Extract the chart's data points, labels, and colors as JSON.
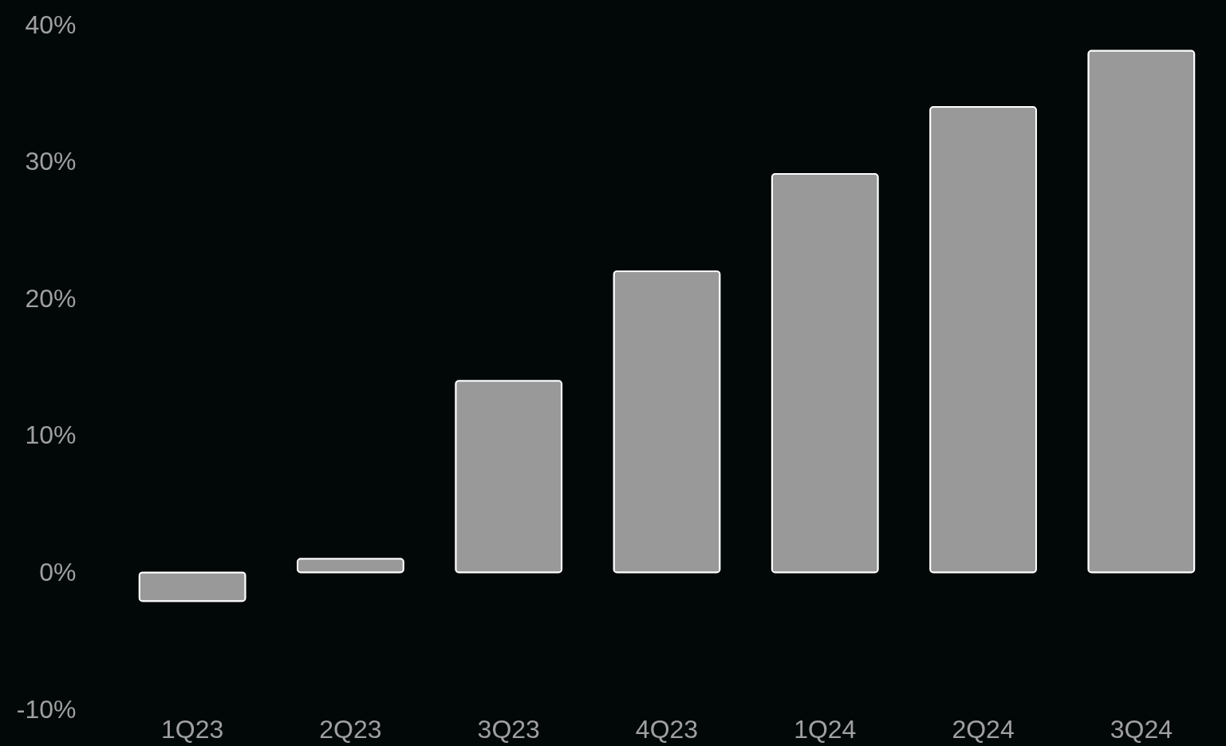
{
  "chart_data": {
    "type": "bar",
    "categories": [
      "1Q23",
      "2Q23",
      "3Q23",
      "4Q23",
      "1Q24",
      "2Q24",
      "3Q24"
    ],
    "values": [
      -2.1,
      1.0,
      14.0,
      22.0,
      29.1,
      34.0,
      38.1
    ],
    "color": "#999999",
    "ylim": [
      -10,
      40
    ],
    "yticks": [
      {
        "value": -10,
        "label": "-10%"
      },
      {
        "value": 0,
        "label": "0%"
      },
      {
        "value": 10,
        "label": "10%"
      },
      {
        "value": 20,
        "label": "20%"
      },
      {
        "value": 30,
        "label": "30%"
      },
      {
        "value": 40,
        "label": "40%"
      }
    ],
    "grid": false
  }
}
